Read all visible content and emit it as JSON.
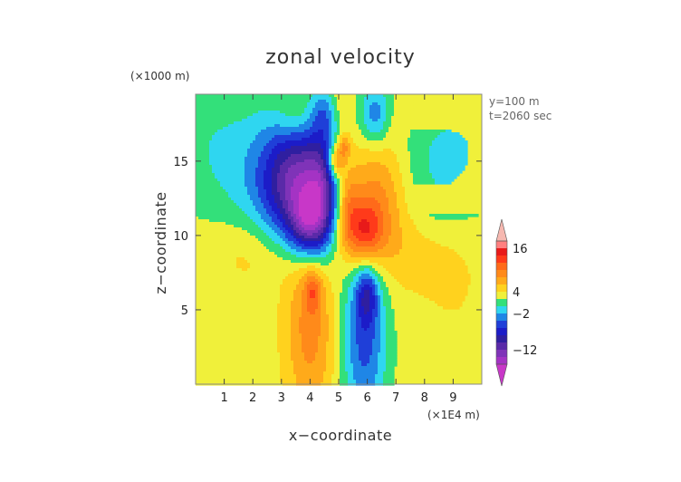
{
  "chart_data": {
    "type": "heatmap",
    "title": "zonal velocity",
    "xlabel": "x−coordinate",
    "ylabel": "z−coordinate",
    "x_unit": "(×1E4 m)",
    "y_unit": "(×1000 m)",
    "annotations": [
      "y=100 m",
      "t=2060 sec"
    ],
    "xlim": [
      0,
      10
    ],
    "ylim": [
      0,
      19.5
    ],
    "x_ticks": [
      "1",
      "2",
      "3",
      "4",
      "5",
      "6",
      "7",
      "8",
      "9"
    ],
    "y_ticks": [
      "5",
      "10",
      "15"
    ],
    "x_tick_values": [
      1,
      2,
      3,
      4,
      5,
      6,
      7,
      8,
      9
    ],
    "y_tick_values": [
      5,
      10,
      15
    ],
    "colorbar": {
      "labels": [
        "16",
        "4",
        "−2",
        "−12"
      ],
      "label_values": [
        16,
        4,
        -2,
        -12
      ],
      "levels": [
        {
          "lo": -99,
          "hi": -16,
          "color": "#c837c8"
        },
        {
          "lo": -16,
          "hi": -14,
          "color": "#a433c4"
        },
        {
          "lo": -14,
          "hi": -12,
          "color": "#7f33b8"
        },
        {
          "lo": -12,
          "hi": -10,
          "color": "#5a2aa8"
        },
        {
          "lo": -10,
          "hi": -8,
          "color": "#2f1fa0"
        },
        {
          "lo": -8,
          "hi": -6,
          "color": "#1c1cc8"
        },
        {
          "lo": -6,
          "hi": -4,
          "color": "#1f3fd8"
        },
        {
          "lo": -4,
          "hi": -2,
          "color": "#1f86e6"
        },
        {
          "lo": -2,
          "hi": 0,
          "color": "#2fd6f0"
        },
        {
          "lo": 0,
          "hi": 2,
          "color": "#33e07a"
        },
        {
          "lo": 2,
          "hi": 4,
          "color": "#f0f03a"
        },
        {
          "lo": 4,
          "hi": 6,
          "color": "#ffd21e"
        },
        {
          "lo": 6,
          "hi": 8,
          "color": "#ffaa1a"
        },
        {
          "lo": 8,
          "hi": 10,
          "color": "#ff8a1a"
        },
        {
          "lo": 10,
          "hi": 12,
          "color": "#ff6a1a"
        },
        {
          "lo": 12,
          "hi": 14,
          "color": "#ff3a1a"
        },
        {
          "lo": 14,
          "hi": 16,
          "color": "#e81a1a"
        },
        {
          "lo": 16,
          "hi": 18,
          "color": "#ff8080"
        },
        {
          "lo": 18,
          "hi": 99,
          "color": "#f6b8b0"
        }
      ]
    },
    "field": {
      "base": 3.0,
      "components": [
        {
          "x": 3.6,
          "z": 13.8,
          "sx": 0.9,
          "sz": 3.0,
          "amp": -12
        },
        {
          "x": 3.9,
          "z": 10.8,
          "sx": 0.45,
          "sz": 1.5,
          "amp": -9
        },
        {
          "x": 4.4,
          "z": 12.4,
          "sx": 0.35,
          "sz": 2.6,
          "amp": -6
        },
        {
          "x": 6.2,
          "z": 12.5,
          "sx": 0.9,
          "sz": 3.0,
          "amp": 11
        },
        {
          "x": 5.9,
          "z": 10.2,
          "sx": 0.45,
          "sz": 1.5,
          "amp": 9
        },
        {
          "x": 5.3,
          "z": 12.0,
          "sx": 0.3,
          "sz": 2.2,
          "amp": 6
        },
        {
          "x": 4.9,
          "z": 15.0,
          "sx": 0.2,
          "sz": 0.8,
          "amp": 8
        },
        {
          "x": 5.2,
          "z": 16.0,
          "sx": 0.15,
          "sz": 0.6,
          "amp": 5
        },
        {
          "x": 5.9,
          "z": 3.5,
          "sx": 0.55,
          "sz": 4.6,
          "amp": -8
        },
        {
          "x": 6.0,
          "z": 6.0,
          "sx": 0.25,
          "sz": 1.3,
          "amp": -6
        },
        {
          "x": 4.0,
          "z": 4.0,
          "sx": 0.6,
          "sz": 4.4,
          "amp": 6
        },
        {
          "x": 4.1,
          "z": 6.3,
          "sx": 0.2,
          "sz": 1.0,
          "amp": 5
        },
        {
          "x": 5.4,
          "z": 12.5,
          "sx": 2.6,
          "sz": 2.8,
          "amp": -2.8
        },
        {
          "x": 4.6,
          "z": 12.5,
          "sx": 2.6,
          "sz": 2.8,
          "amp": -2.8
        },
        {
          "x": 2.2,
          "z": 9.0,
          "sx": 1.2,
          "sz": 1.8,
          "amp": 2.5
        },
        {
          "x": 7.8,
          "z": 9.0,
          "sx": 1.2,
          "sz": 1.8,
          "amp": 2.0
        },
        {
          "x": 1.0,
          "z": 16.5,
          "sx": 1.6,
          "sz": 2.8,
          "amp": -2.6
        },
        {
          "x": 9.0,
          "z": 16.5,
          "sx": 1.6,
          "sz": 2.8,
          "amp": -2.6
        },
        {
          "x": 9.0,
          "z": 6.0,
          "sx": 1.0,
          "sz": 3.0,
          "amp": 1.0
        },
        {
          "x": 3.5,
          "z": 17.8,
          "sx": 0.5,
          "sz": 1.2,
          "amp": 3.0
        },
        {
          "x": 6.5,
          "z": 17.8,
          "sx": 0.5,
          "sz": 1.2,
          "amp": 3.0
        },
        {
          "x": 4.5,
          "z": 18.2,
          "sx": 0.35,
          "sz": 1.2,
          "amp": -4.5
        },
        {
          "x": 6.3,
          "z": 18.0,
          "sx": 0.4,
          "sz": 1.4,
          "amp": -9.0
        },
        {
          "x": 5.0,
          "z": 18.5,
          "sx": 0.25,
          "sz": 1.5,
          "amp": 2.0
        }
      ]
    }
  }
}
